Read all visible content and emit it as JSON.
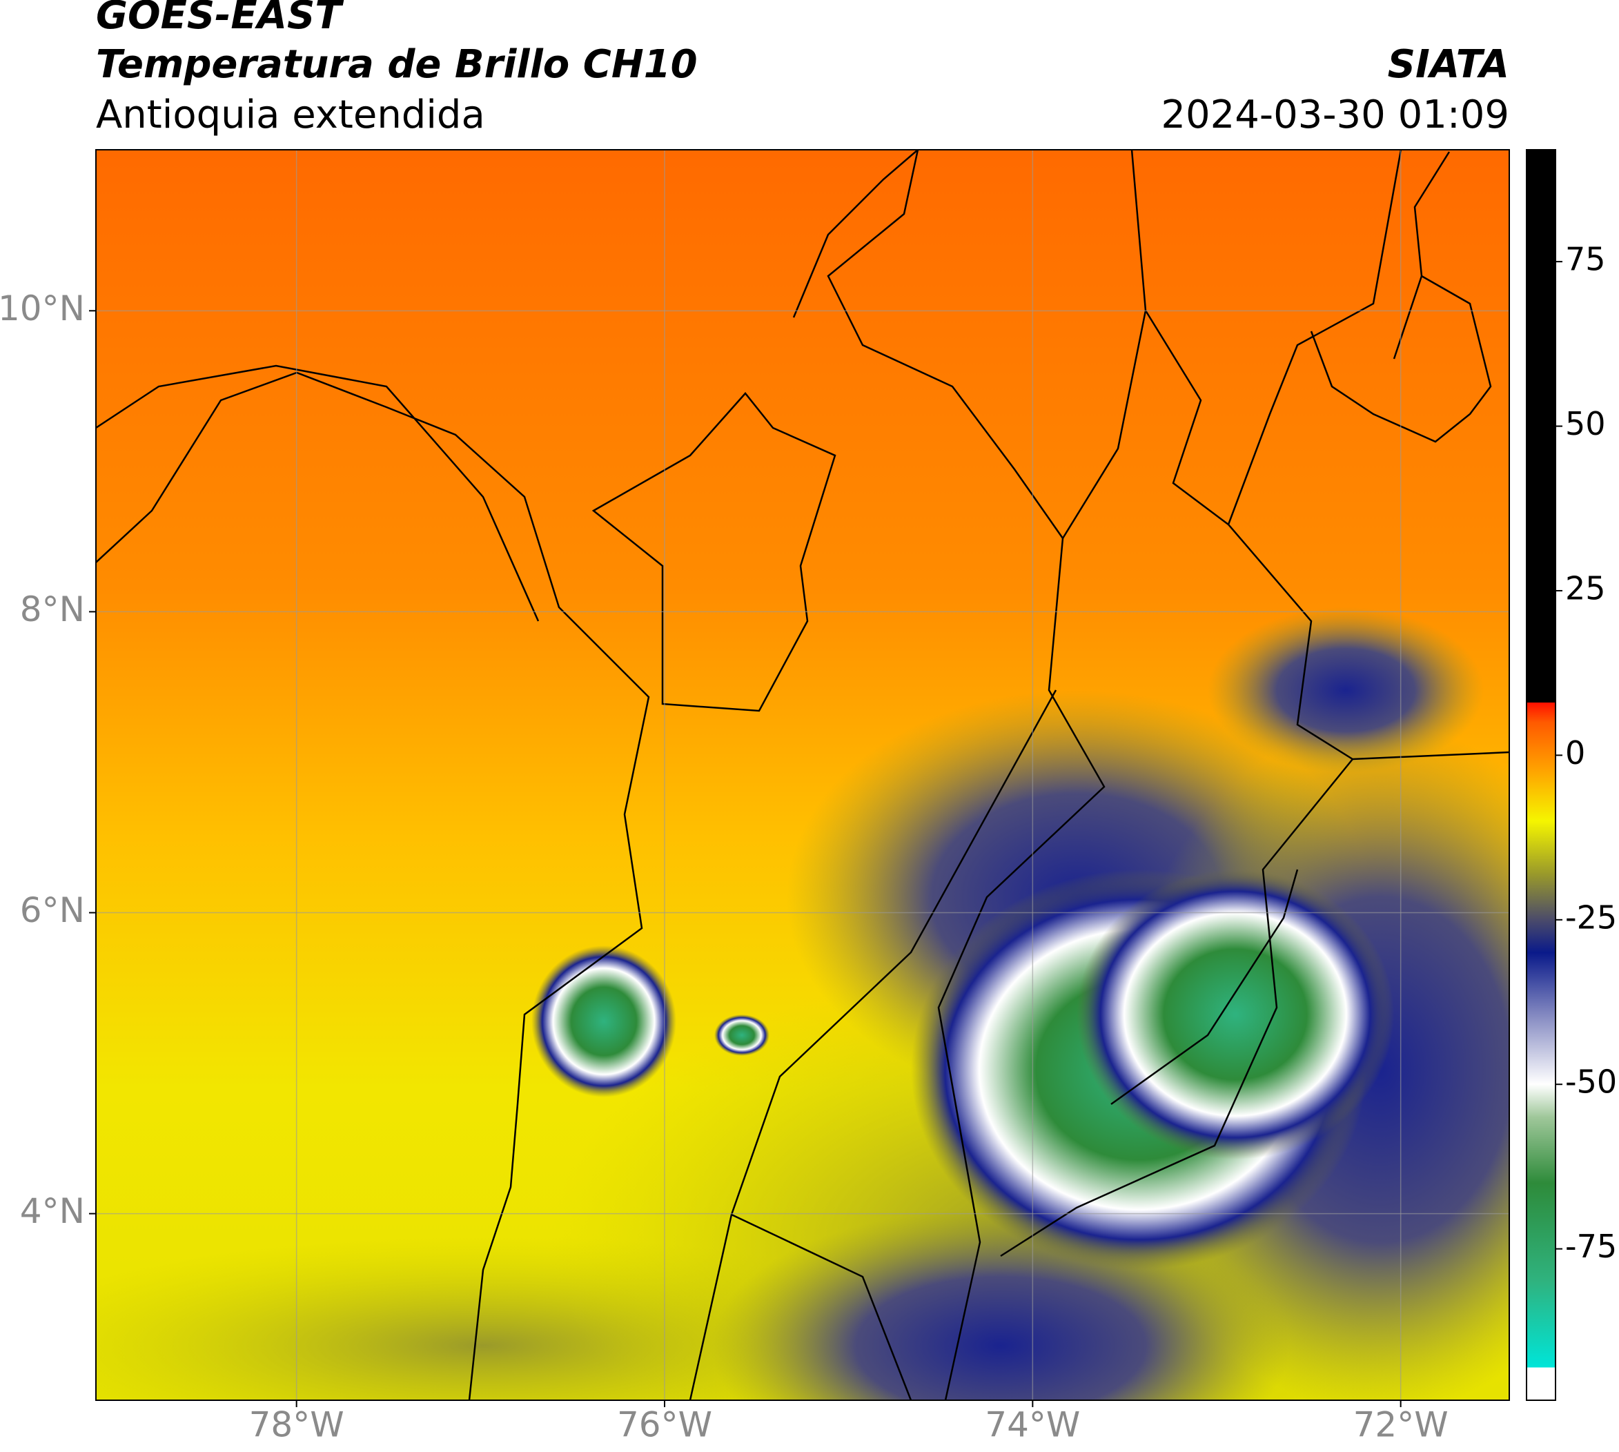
{
  "header": {
    "title_line1": "GOES-EAST",
    "title_line2": "Temperatura de Brillo CH10",
    "subtitle": "Antioquia extendida",
    "source": "SIATA",
    "datetime": "2024-03-30 01:09"
  },
  "map": {
    "xlim": [
      -79.09,
      -71.41
    ],
    "ylim": [
      2.76,
      11.07
    ],
    "xticks": [
      {
        "value": -78,
        "label": "78°W"
      },
      {
        "value": -76,
        "label": "76°W"
      },
      {
        "value": -74,
        "label": "74°W"
      },
      {
        "value": -72,
        "label": "72°W"
      }
    ],
    "yticks": [
      {
        "value": 4,
        "label": "4°N"
      },
      {
        "value": 6,
        "label": "6°N"
      },
      {
        "value": 8,
        "label": "8°N"
      },
      {
        "value": 10,
        "label": "10°N"
      }
    ],
    "grid": true
  },
  "colorbar": {
    "lim": [
      -98,
      92
    ],
    "ticks": [
      75,
      50,
      25,
      0,
      -25,
      -50,
      -75
    ],
    "colormap": [
      [
        -98,
        "#ffffff"
      ],
      [
        -93,
        "#ffffff"
      ],
      [
        -93,
        "#00e5d8"
      ],
      [
        -80,
        "#2fb37f"
      ],
      [
        -65,
        "#2e8b3a"
      ],
      [
        -55,
        "#9fc79a"
      ],
      [
        -50,
        "#ffffff"
      ],
      [
        -40,
        "#8a8fc4"
      ],
      [
        -30,
        "#0a1a8a"
      ],
      [
        -25,
        "#4b4b6a"
      ],
      [
        -18,
        "#9a9a2a"
      ],
      [
        -10,
        "#f5f500"
      ],
      [
        -2,
        "#ffa000"
      ],
      [
        5,
        "#ff5a00"
      ],
      [
        8,
        "#ff1000"
      ],
      [
        8,
        "#000000"
      ],
      [
        92,
        "#000000"
      ]
    ]
  }
}
